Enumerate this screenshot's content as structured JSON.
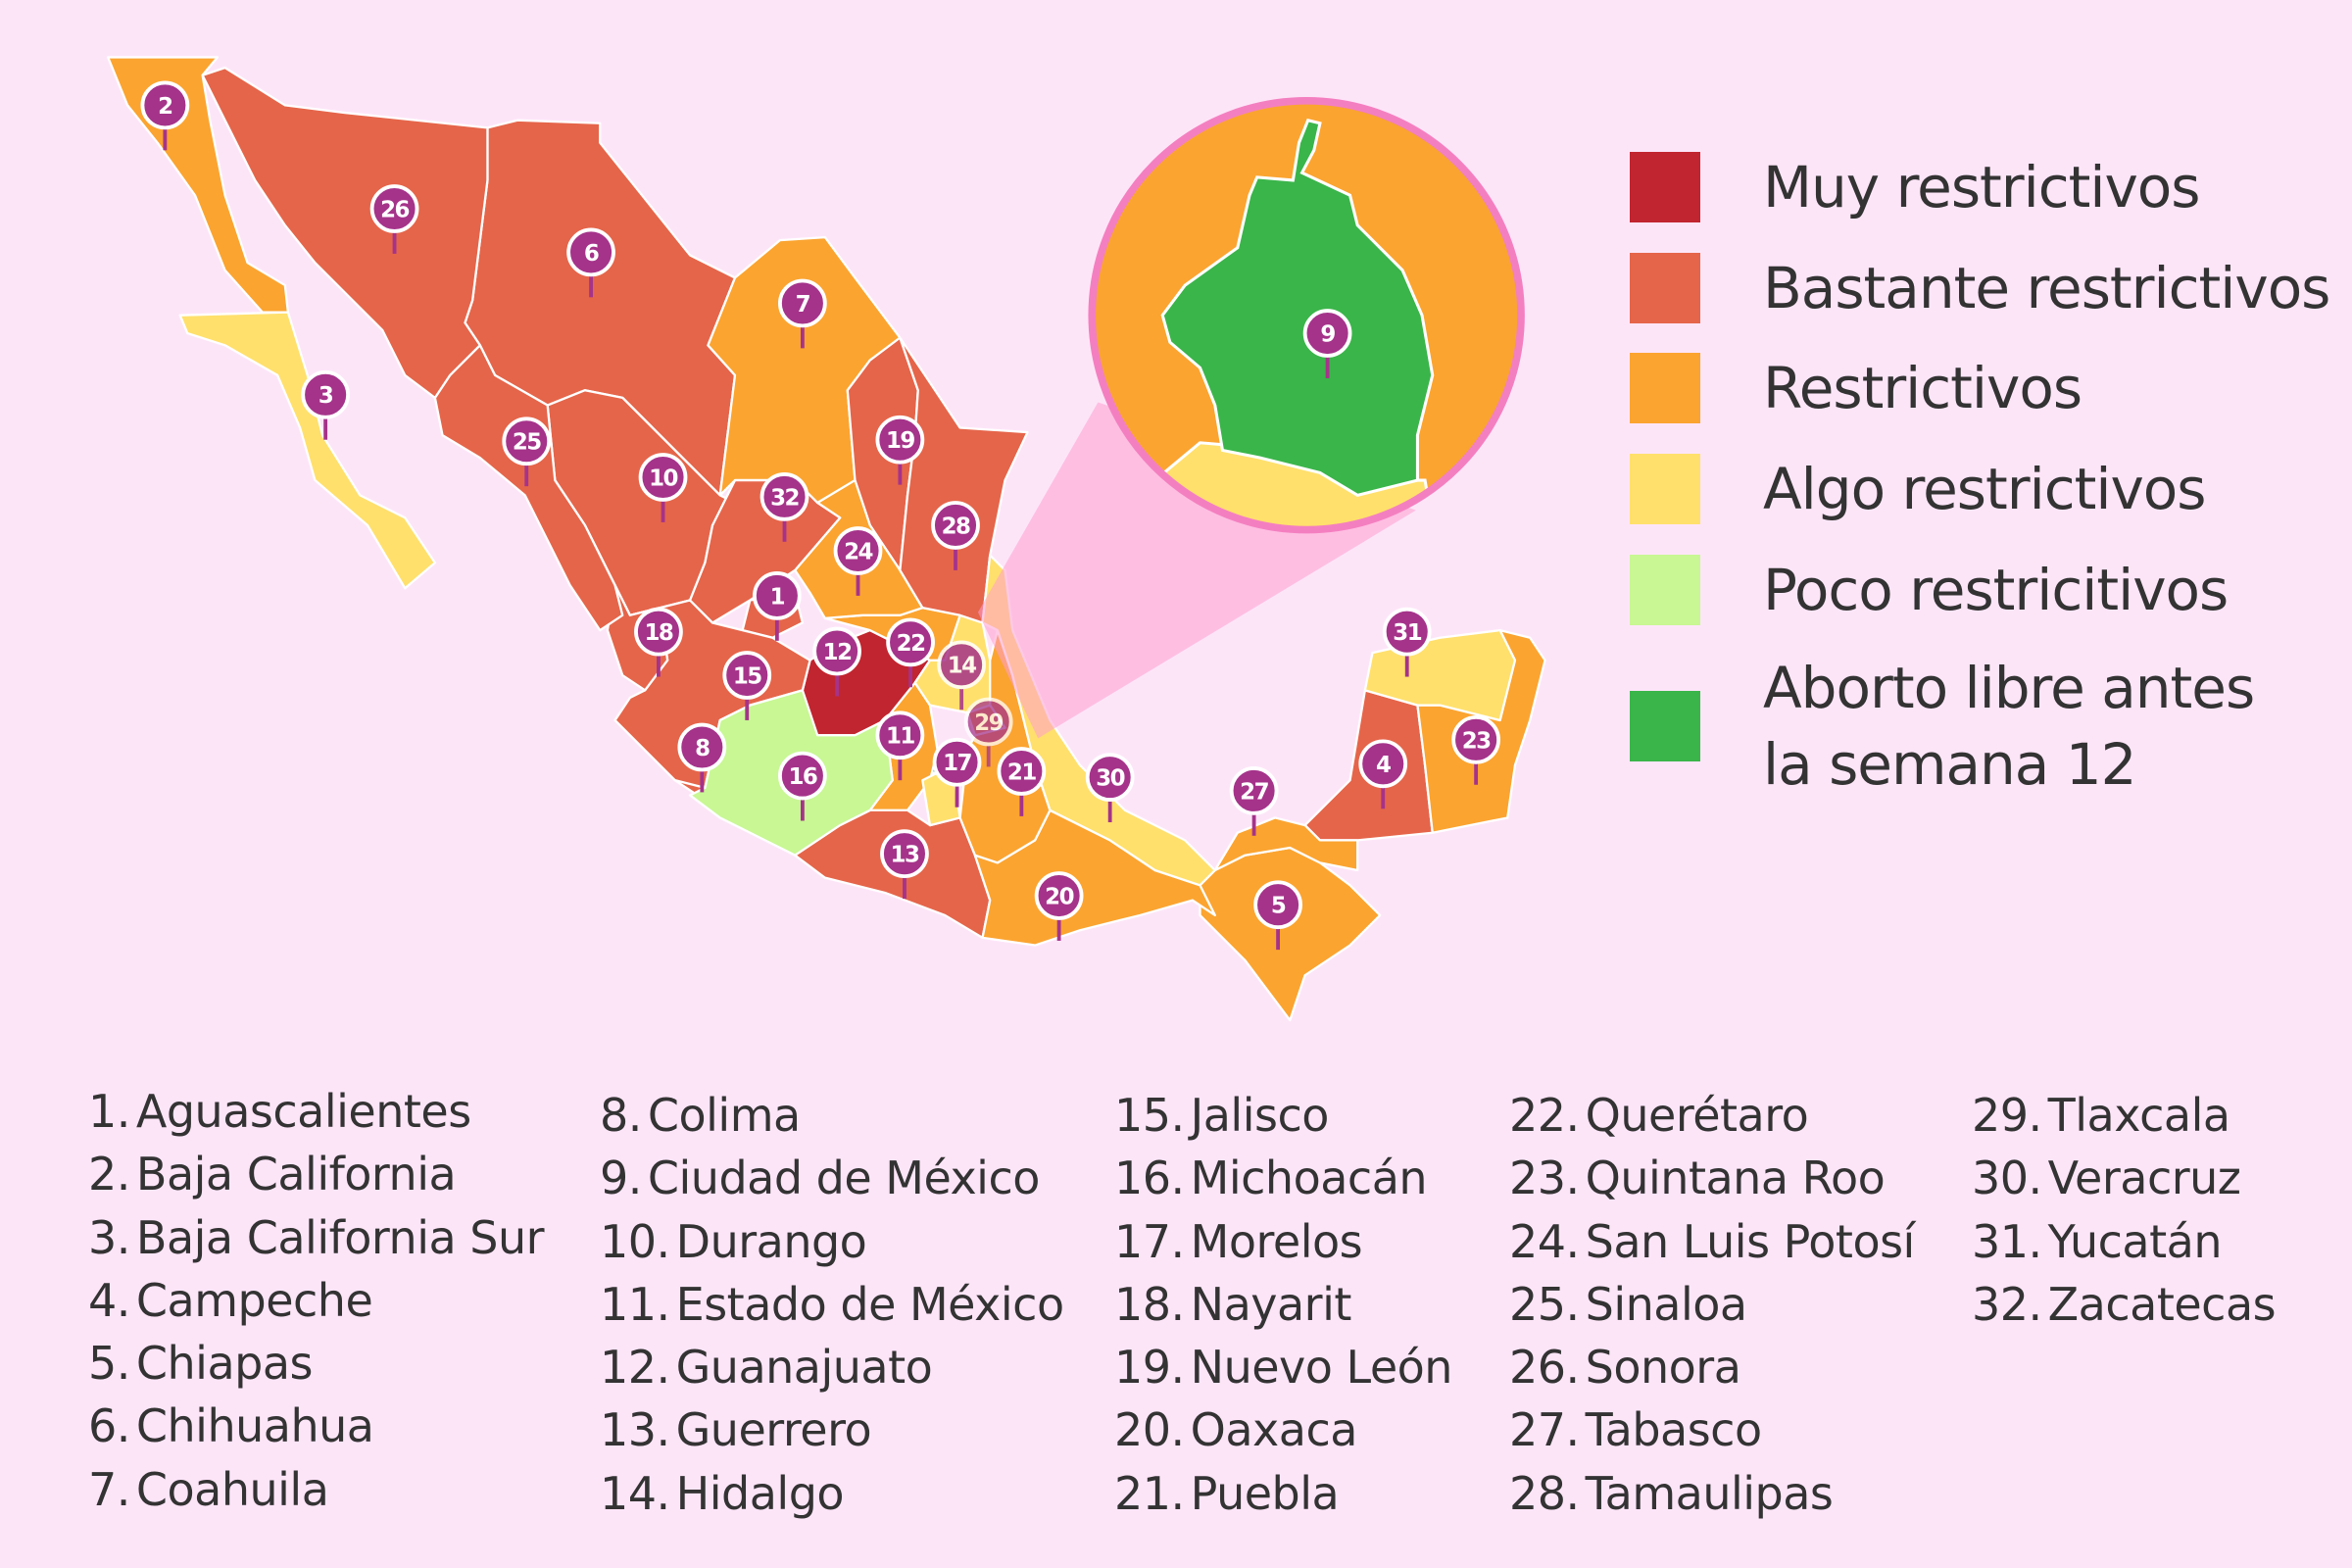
{
  "legend": [
    {
      "key": "muy",
      "label": "Muy restrictivos",
      "color": "#c1252f"
    },
    {
      "key": "bastante",
      "label": "Bastante restrictivos",
      "color": "#e5654a"
    },
    {
      "key": "restrictivos",
      "label": "Restrictivos",
      "color": "#fba430"
    },
    {
      "key": "algo",
      "label": "Algo restrictivos",
      "color": "#ffe06c"
    },
    {
      "key": "poco",
      "label": "Poco restricitivos",
      "color": "#c8f794"
    },
    {
      "key": "libre",
      "label": "Aborto libre antes la semana 12",
      "label_line1": "Aborto libre antes",
      "label_line2": "la semana 12",
      "color": "#3ab54a"
    }
  ],
  "pin_color": "#a5338a",
  "inset_border_color": "#f47fc0",
  "states": [
    {
      "num": "1",
      "name": "Aguascalientes",
      "category": "bastante"
    },
    {
      "num": "2",
      "name": "Baja California",
      "category": "restrictivos"
    },
    {
      "num": "3",
      "name": "Baja California Sur",
      "category": "algo"
    },
    {
      "num": "4",
      "name": "Campeche",
      "category": "bastante"
    },
    {
      "num": "5",
      "name": "Chiapas",
      "category": "restrictivos"
    },
    {
      "num": "6",
      "name": "Chihuahua",
      "category": "bastante"
    },
    {
      "num": "7",
      "name": "Coahuila",
      "category": "restrictivos"
    },
    {
      "num": "8",
      "name": "Colima",
      "category": "bastante"
    },
    {
      "num": "9",
      "name": "Ciudad de México",
      "category": "libre"
    },
    {
      "num": "10",
      "name": "Durango",
      "category": "bastante"
    },
    {
      "num": "11",
      "name": "Estado de México",
      "category": "restrictivos"
    },
    {
      "num": "12",
      "name": "Guanajuato",
      "category": "muy"
    },
    {
      "num": "13",
      "name": "Guerrero",
      "category": "bastante"
    },
    {
      "num": "14",
      "name": "Hidalgo",
      "category": "algo"
    },
    {
      "num": "15",
      "name": "Jalisco",
      "category": "bastante"
    },
    {
      "num": "16",
      "name": "Michoacán",
      "category": "poco"
    },
    {
      "num": "17",
      "name": "Morelos",
      "category": "algo"
    },
    {
      "num": "18",
      "name": "Nayarit",
      "category": "bastante"
    },
    {
      "num": "19",
      "name": "Nuevo León",
      "category": "bastante"
    },
    {
      "num": "20",
      "name": "Oaxaca",
      "category": "restrictivos"
    },
    {
      "num": "21",
      "name": "Puebla",
      "category": "restrictivos"
    },
    {
      "num": "22",
      "name": "Querétaro",
      "category": "restrictivos"
    },
    {
      "num": "23",
      "name": "Quintana Roo",
      "category": "restrictivos"
    },
    {
      "num": "24",
      "name": "San Luis Potosí",
      "category": "restrictivos"
    },
    {
      "num": "25",
      "name": "Sinaloa",
      "category": "bastante"
    },
    {
      "num": "26",
      "name": "Sonora",
      "category": "bastante"
    },
    {
      "num": "27",
      "name": "Tabasco",
      "category": "restrictivos"
    },
    {
      "num": "28",
      "name": "Tamaulipas",
      "category": "bastante"
    },
    {
      "num": "29",
      "name": "Tlaxcala",
      "category": "restrictivos"
    },
    {
      "num": "30",
      "name": "Veracruz",
      "category": "algo"
    },
    {
      "num": "31",
      "name": "Yucatán",
      "category": "algo"
    },
    {
      "num": "32",
      "name": "Zacatecas",
      "category": "bastante"
    }
  ]
}
